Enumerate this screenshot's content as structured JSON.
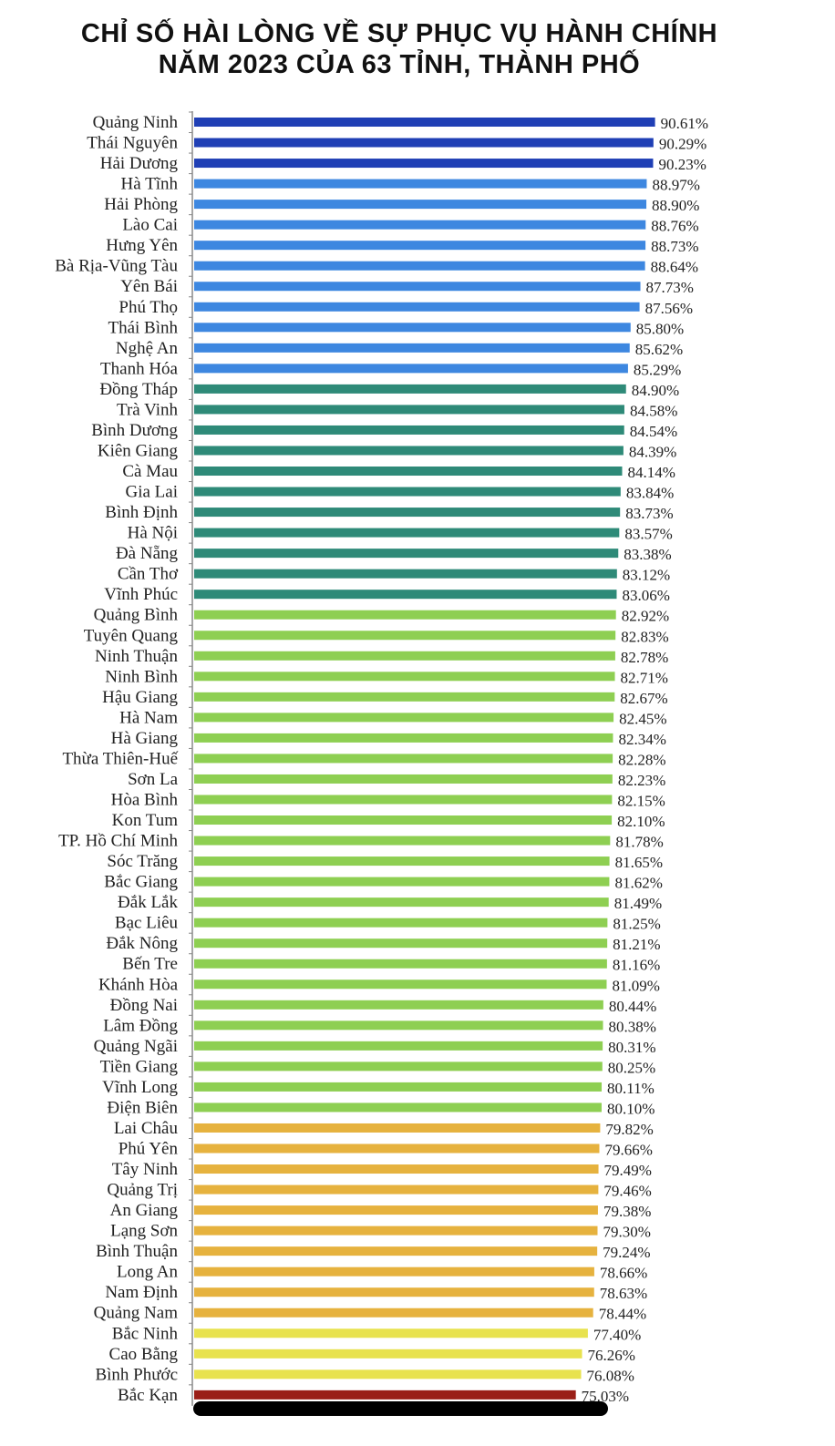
{
  "title_lines": [
    "CHỈ SỐ HÀI LÒNG VỀ SỰ PHỤC VỤ HÀNH CHÍNH",
    "NĂM 2023 CỦA 63 TỈNH, THÀNH PHỐ"
  ],
  "chart_data": {
    "type": "bar",
    "orientation": "horizontal",
    "title": "CHỈ SỐ HÀI LÒNG VỀ SỰ PHỤC VỤ HÀNH CHÍNH NĂM 2023 CỦA 63 TỈNH, THÀNH PHỐ",
    "xlim": [
      0,
      100
    ],
    "grid": false,
    "value_suffix": "%",
    "categories": [
      "Quảng Ninh",
      "Thái Nguyên",
      "Hải Dương",
      "Hà Tĩnh",
      "Hải Phòng",
      "Lào Cai",
      "Hưng Yên",
      "Bà Rịa-Vũng Tàu",
      "Yên Bái",
      "Phú Thọ",
      "Thái Bình",
      "Nghệ An",
      "Thanh Hóa",
      "Đồng Tháp",
      "Trà Vinh",
      "Bình Dương",
      "Kiên Giang",
      "Cà Mau",
      "Gia Lai",
      "Bình Định",
      "Hà Nội",
      "Đà Nẵng",
      "Cần Thơ",
      "Vĩnh Phúc",
      "Quảng Bình",
      "Tuyên Quang",
      "Ninh Thuận",
      "Ninh Bình",
      "Hậu Giang",
      "Hà Nam",
      "Hà Giang",
      "Thừa Thiên-Huế",
      "Sơn La",
      "Hòa Bình",
      "Kon Tum",
      "TP. Hồ Chí Minh",
      "Sóc Trăng",
      "Bắc Giang",
      "Đắk Lắk",
      "Bạc Liêu",
      "Đắk Nông",
      "Bến Tre",
      "Khánh Hòa",
      "Đồng Nai",
      "Lâm Đồng",
      "Quảng Ngãi",
      "Tiền Giang",
      "Vĩnh Long",
      "Điện Biên",
      "Lai Châu",
      "Phú Yên",
      "Tây Ninh",
      "Quảng Trị",
      "An Giang",
      "Lạng Sơn",
      "Bình Thuận",
      "Long An",
      "Nam Định",
      "Quảng Nam",
      "Bắc Ninh",
      "Cao Bằng",
      "Bình Phước",
      "Bắc Kạn"
    ],
    "values": [
      90.61,
      90.29,
      90.23,
      88.97,
      88.9,
      88.76,
      88.73,
      88.64,
      87.73,
      87.56,
      85.8,
      85.62,
      85.29,
      84.9,
      84.58,
      84.54,
      84.39,
      84.14,
      83.84,
      83.73,
      83.57,
      83.38,
      83.12,
      83.06,
      82.92,
      82.83,
      82.78,
      82.71,
      82.67,
      82.45,
      82.34,
      82.28,
      82.23,
      82.15,
      82.1,
      81.78,
      81.65,
      81.62,
      81.49,
      81.25,
      81.21,
      81.16,
      81.09,
      80.44,
      80.38,
      80.31,
      80.25,
      80.11,
      80.1,
      79.82,
      79.66,
      79.49,
      79.46,
      79.38,
      79.3,
      79.24,
      78.66,
      78.63,
      78.44,
      77.4,
      76.26,
      76.08,
      75.03
    ],
    "labels": [
      "90.61%",
      "90.29%",
      "90.23%",
      "88.97%",
      "88.90%",
      "88.76%",
      "88.73%",
      "88.64%",
      "87.73%",
      "87.56%",
      "85.80%",
      "85.62%",
      "85.29%",
      "84.90%",
      "84.58%",
      "84.54%",
      "84.39%",
      "84.14%",
      "83.84%",
      "83.73%",
      "83.57%",
      "83.38%",
      "83.12%",
      "83.06%",
      "82.92%",
      "82.83%",
      "82.78%",
      "82.71%",
      "82.67%",
      "82.45%",
      "82.34%",
      "82.28%",
      "82.23%",
      "82.15%",
      "82.10%",
      "81.78%",
      "81.65%",
      "81.62%",
      "81.49%",
      "81.25%",
      "81.21%",
      "81.16%",
      "81.09%",
      "80.44%",
      "80.38%",
      "80.31%",
      "80.25%",
      "80.11%",
      "80.10%",
      "79.82%",
      "79.66%",
      "79.49%",
      "79.46%",
      "79.38%",
      "79.30%",
      "79.24%",
      "78.66%",
      "78.63%",
      "78.44%",
      "77.40%",
      "76.26%",
      "76.08%",
      "75.03%"
    ],
    "color_groups": [
      {
        "count": 3,
        "color": "#1f3fb5"
      },
      {
        "count": 10,
        "color": "#3d87e0"
      },
      {
        "count": 11,
        "color": "#2e8a78"
      },
      {
        "count": 25,
        "color": "#8ecf52"
      },
      {
        "count": 10,
        "color": "#e6b23e"
      },
      {
        "count": 3,
        "color": "#e8e24e"
      },
      {
        "count": 1,
        "color": "#9a1f17"
      }
    ]
  }
}
